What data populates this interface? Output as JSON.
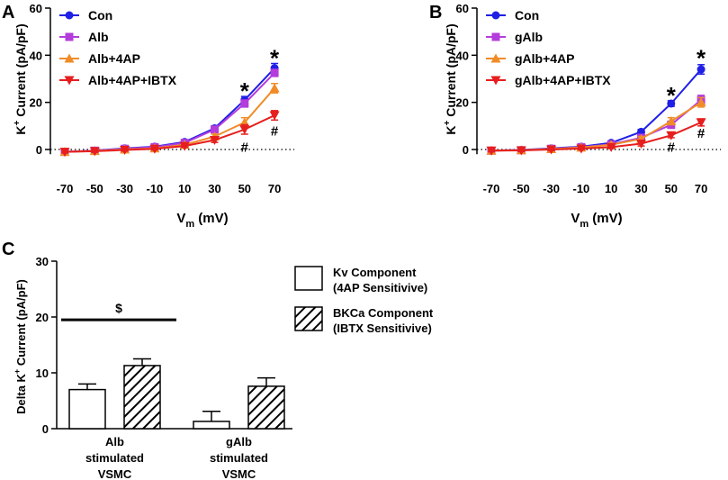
{
  "chart_data": [
    {
      "id": "A",
      "panel_label": "A",
      "type": "line",
      "ylabel": "K+ Current (pA/pF)",
      "ylabel_main": "K",
      "ylabel_sup": "+",
      "ylabel_rest": " Current (pA/pF)",
      "xlabel_main": "V",
      "xlabel_sub": "m",
      "xlabel_rest": " (mV)",
      "categories": [
        "-70",
        "-50",
        "-30",
        "-10",
        "10",
        "30",
        "50",
        "70"
      ],
      "ylim": [
        0,
        60
      ],
      "y_min_shown": -2,
      "yticks": [
        "0",
        "20",
        "40",
        "60"
      ],
      "series": [
        {
          "name": "Con",
          "color": "#1f1fe6",
          "marker": "circle",
          "values": [
            -1,
            -0.5,
            0.5,
            1.2,
            3.2,
            9,
            21,
            34.5
          ],
          "errors": [
            0.5,
            0.5,
            0.5,
            0.5,
            0.6,
            1,
            1.5,
            2
          ]
        },
        {
          "name": "Alb",
          "color": "#b43cdc",
          "marker": "square",
          "values": [
            -1,
            -0.5,
            0.3,
            1,
            2.8,
            8.5,
            19.5,
            32.5
          ],
          "errors": [
            0.5,
            0.5,
            0.5,
            0.5,
            0.6,
            1,
            1.5,
            1.5
          ]
        },
        {
          "name": "Alb+4AP",
          "color": "#f08c28",
          "marker": "triangle-up",
          "values": [
            -1,
            -0.6,
            0,
            0.5,
            2,
            5.5,
            11.5,
            26
          ],
          "errors": [
            0.5,
            0.5,
            0.5,
            0.5,
            0.6,
            1,
            2,
            2
          ]
        },
        {
          "name": "Alb+4AP+IBTX",
          "color": "#e61e1e",
          "marker": "triangle-down",
          "values": [
            -1,
            -0.7,
            -0.2,
            0.3,
            1.5,
            4,
            8.5,
            14.5
          ],
          "errors": [
            0.5,
            0.5,
            0.5,
            0.5,
            0.6,
            1,
            2,
            2
          ]
        }
      ],
      "annotations": [
        {
          "text": "*",
          "category": "50",
          "y": 26
        },
        {
          "text": "*",
          "category": "70",
          "y": 40
        },
        {
          "text": "#",
          "category": "50",
          "y": -1
        },
        {
          "text": "#",
          "category": "70",
          "y": 6
        }
      ]
    },
    {
      "id": "B",
      "panel_label": "B",
      "type": "line",
      "ylabel": "K+ Current (pA/pF)",
      "ylabel_main": "K",
      "ylabel_sup": "+",
      "ylabel_rest": " Current (pA/pF)",
      "xlabel_main": "V",
      "xlabel_sub": "m",
      "xlabel_rest": " (mV)",
      "categories": [
        "-70",
        "-50",
        "-30",
        "-10",
        "10",
        "30",
        "50",
        "70"
      ],
      "ylim": [
        0,
        60
      ],
      "y_min_shown": -2,
      "yticks": [
        "0",
        "20",
        "40",
        "60"
      ],
      "series": [
        {
          "name": "Con",
          "color": "#1f1fe6",
          "marker": "circle",
          "values": [
            -0.5,
            -0.2,
            0.5,
            1.2,
            2.8,
            7.5,
            19.5,
            34
          ],
          "errors": [
            0.5,
            0.5,
            0.5,
            0.5,
            0.6,
            1,
            1.2,
            2
          ]
        },
        {
          "name": "gAlb",
          "color": "#b43cdc",
          "marker": "square",
          "values": [
            -0.5,
            -0.3,
            0.3,
            1,
            2.2,
            5,
            10.5,
            21
          ],
          "errors": [
            0.5,
            0.5,
            0.5,
            0.5,
            0.6,
            1,
            1.5,
            2
          ]
        },
        {
          "name": "gAlb+4AP",
          "color": "#f08c28",
          "marker": "triangle-up",
          "values": [
            -0.5,
            -0.3,
            0.2,
            0.8,
            2,
            4.5,
            12,
            20
          ],
          "errors": [
            0.5,
            0.5,
            0.5,
            0.5,
            0.6,
            1,
            1.5,
            2
          ]
        },
        {
          "name": "gAlb+4AP+IBTX",
          "color": "#e61e1e",
          "marker": "triangle-down",
          "values": [
            -0.5,
            -0.4,
            0,
            0.4,
            1,
            2.5,
            6,
            11.5
          ],
          "errors": [
            0.5,
            0.5,
            0.5,
            0.5,
            0.6,
            1,
            1,
            1.5
          ]
        }
      ],
      "annotations": [
        {
          "text": "*",
          "category": "50",
          "y": 24
        },
        {
          "text": "*",
          "category": "70",
          "y": 40
        },
        {
          "text": "#",
          "category": "50",
          "y": -1
        },
        {
          "text": "#",
          "category": "70",
          "y": 5
        }
      ]
    },
    {
      "id": "C",
      "panel_label": "C",
      "type": "bar",
      "ylabel": "Delta K+ Current (pA/pF)",
      "ylabel_main": "Delta K",
      "ylabel_sup": "+",
      "ylabel_rest": " Current (pA/pF)",
      "ylim": [
        0,
        30
      ],
      "yticks": [
        "0",
        "10",
        "20",
        "30"
      ],
      "categories": [
        [
          "Alb",
          "stimulated",
          "VSMC"
        ],
        [
          "gAlb",
          "stimulated",
          "VSMC"
        ]
      ],
      "series": [
        {
          "name": "Kv Component",
          "name_line2": "(4AP Sensitivive)",
          "fill": "open",
          "values": [
            7,
            1.3
          ],
          "errors": [
            1,
            1.8
          ]
        },
        {
          "name": "BKCa Component",
          "name_line2": "(IBTX Sensitivive)",
          "fill": "hatched",
          "values": [
            11.3,
            7.6
          ],
          "errors": [
            1.2,
            1.5
          ]
        }
      ],
      "annotation": {
        "text": "$",
        "y": 19.5
      }
    }
  ]
}
